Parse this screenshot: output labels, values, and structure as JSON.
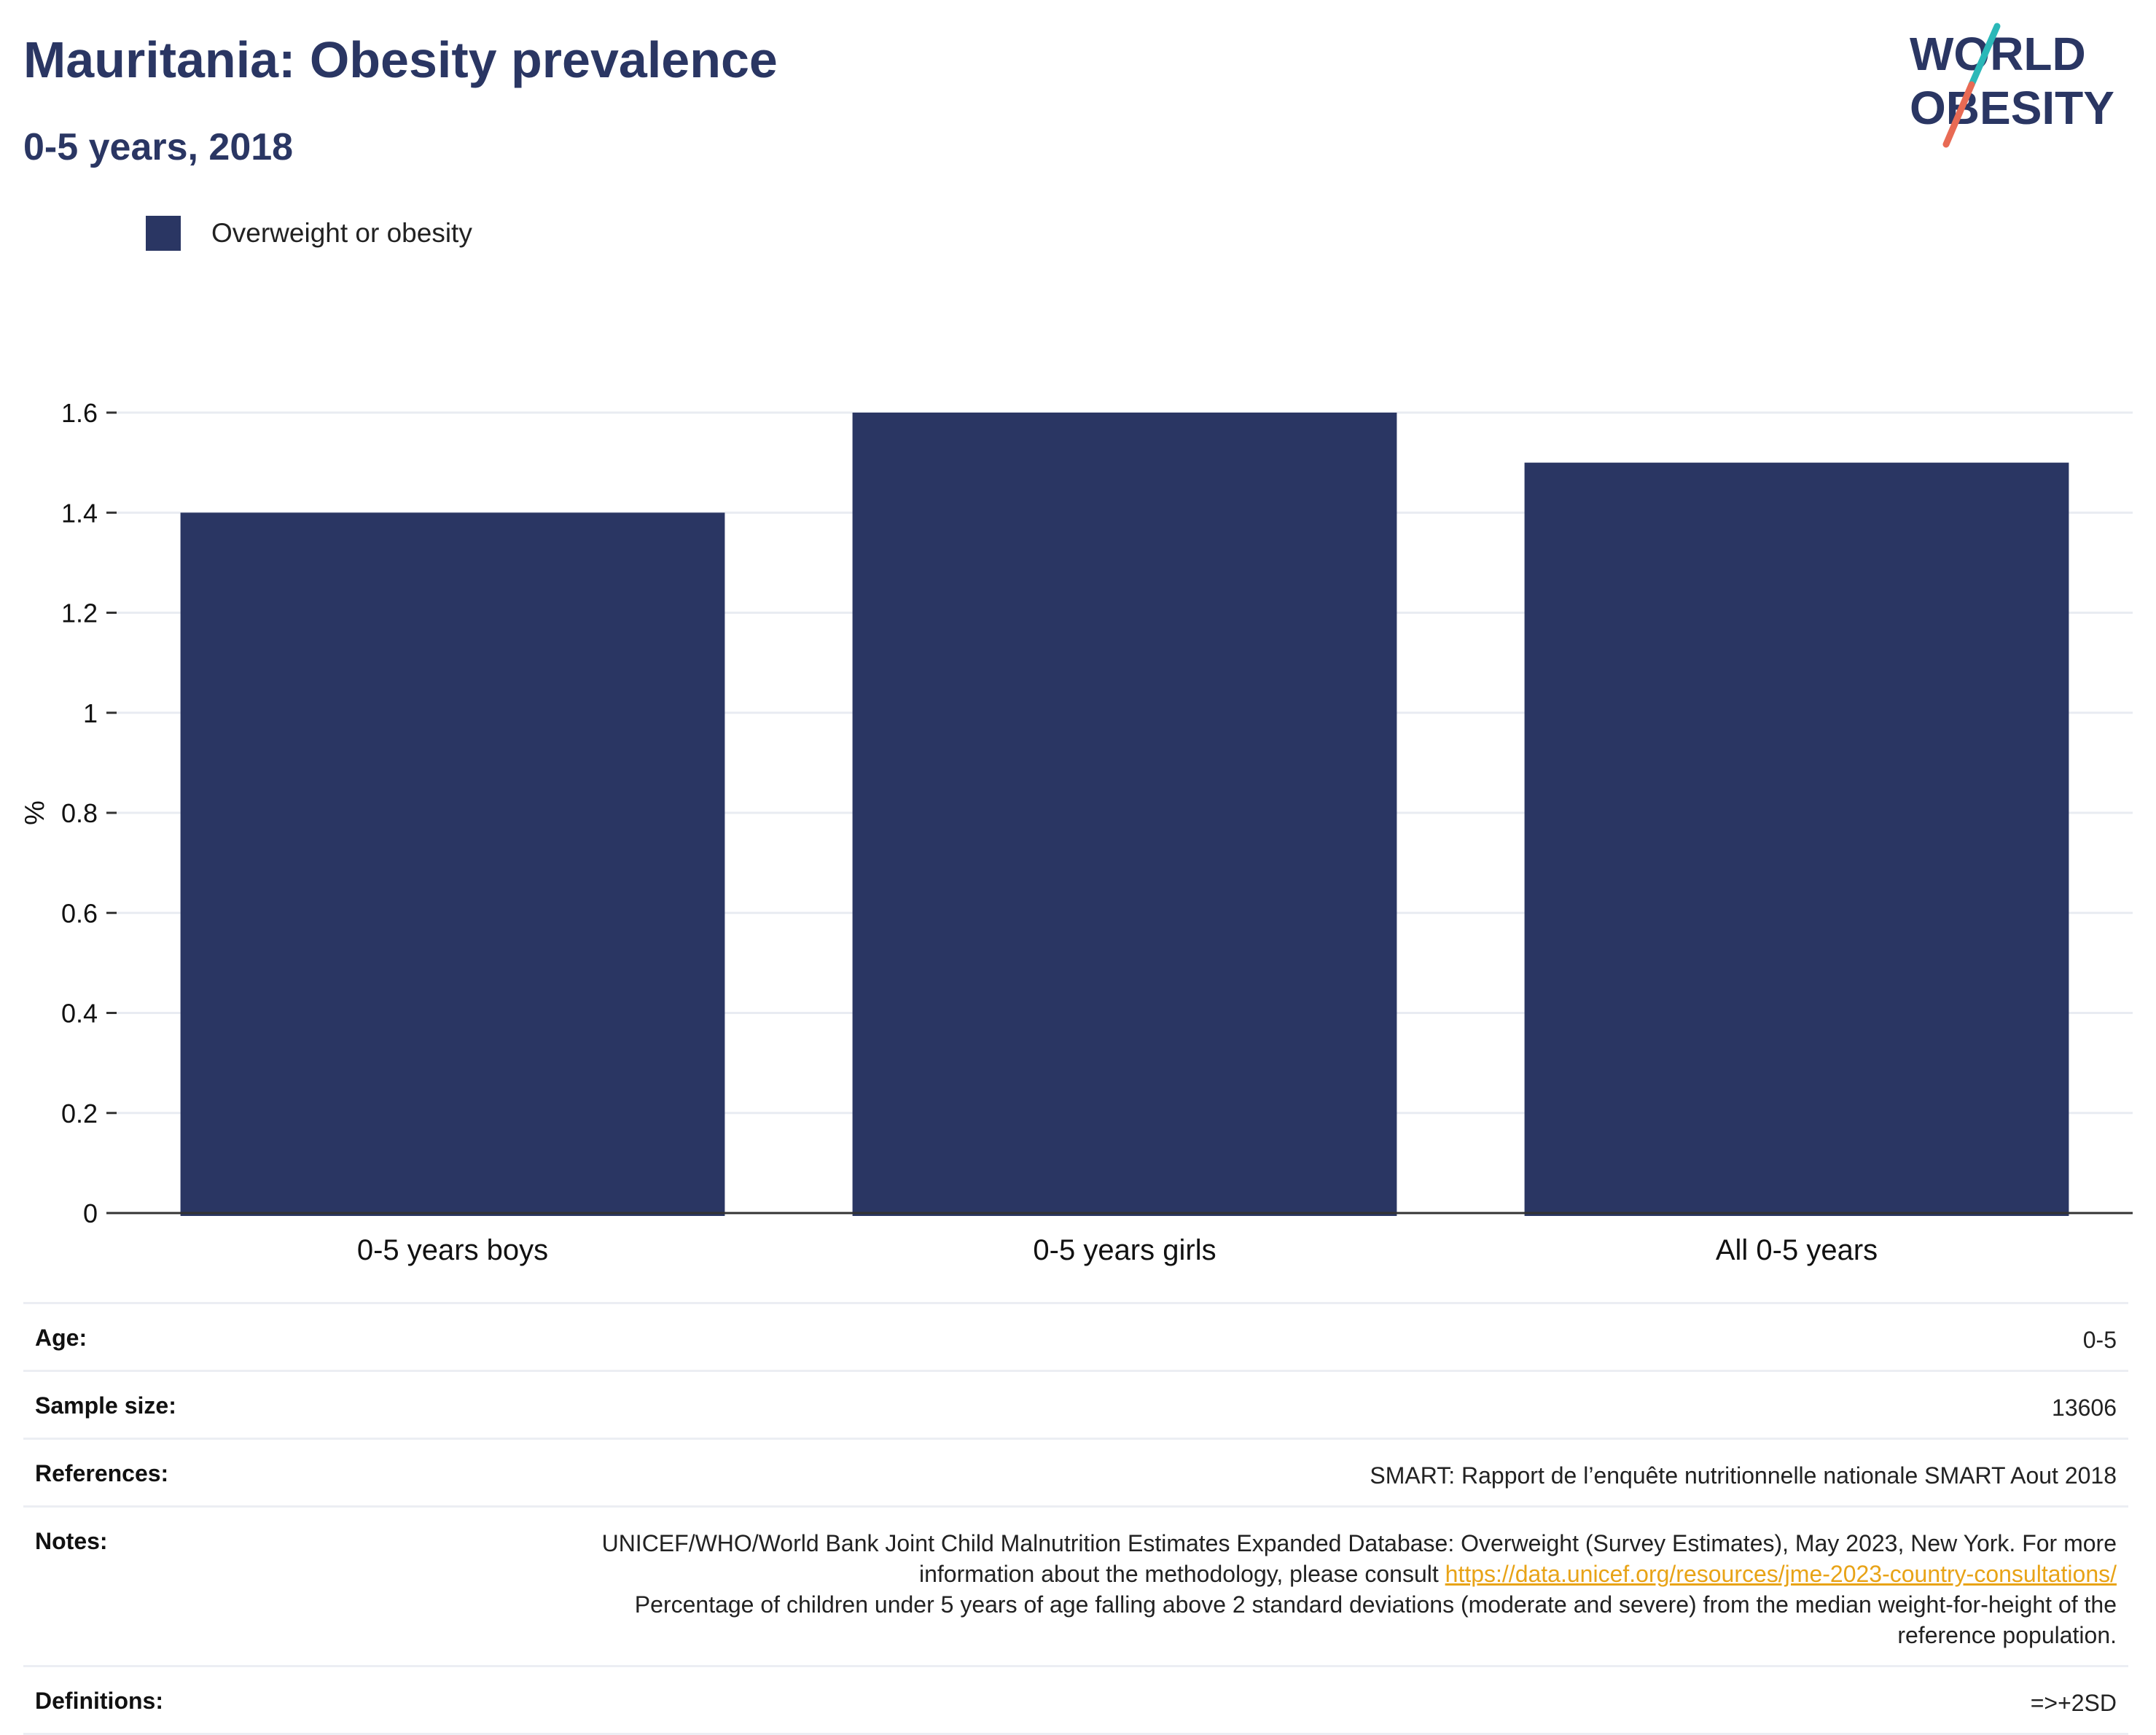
{
  "title": "Mauritania: Obesity prevalence",
  "subtitle": "0-5 years, 2018",
  "logo": {
    "line1": "WORLD",
    "line2": "OBESITY",
    "colors": {
      "text": "#2a3663",
      "slash_top": "#2bb8b8",
      "slash_bottom": "#e86a54"
    }
  },
  "legend": {
    "label": "Overweight or obesity",
    "color": "#2a3663"
  },
  "chart_data": {
    "type": "bar",
    "categories": [
      "0-5 years boys",
      "0-5 years girls",
      "All 0-5 years"
    ],
    "series": [
      {
        "name": "Overweight or obesity",
        "values": [
          1.4,
          1.6,
          1.5
        ]
      }
    ],
    "ylabel": "%",
    "xlabel": "",
    "ylim": [
      0,
      1.6
    ],
    "yticks": [
      0,
      0.2,
      0.4,
      0.6,
      0.8,
      1,
      1.2,
      1.4,
      1.6
    ],
    "ytick_labels": [
      "0",
      "0.2",
      "0.4",
      "0.6",
      "0.8",
      "1",
      "1.2",
      "1.4",
      "1.6"
    ],
    "grid": true,
    "legend_position": "top-left",
    "bar_color": "#2a3663"
  },
  "meta": {
    "age": {
      "label": "Age:",
      "value": "0-5"
    },
    "sample_size": {
      "label": "Sample size:",
      "value": "13606"
    },
    "references": {
      "label": "References:",
      "value": "SMART: Rapport de l’enquête nutritionnelle nationale SMART Aout 2018"
    },
    "notes": {
      "label": "Notes:",
      "text1": "UNICEF/WHO/World Bank Joint Child Malnutrition Estimates Expanded Database: Overweight (Survey Estimates), May 2023, New York. For more information about the methodology, please consult",
      "link": "https://data.unicef.org/resources/jme-2023-country-consultations/",
      "text2": "Percentage of children under 5 years of age falling above 2 standard deviations (moderate and severe) from the median weight-for-height of the reference population."
    },
    "definitions": {
      "label": "Definitions:",
      "value": "=>+2SD"
    }
  }
}
